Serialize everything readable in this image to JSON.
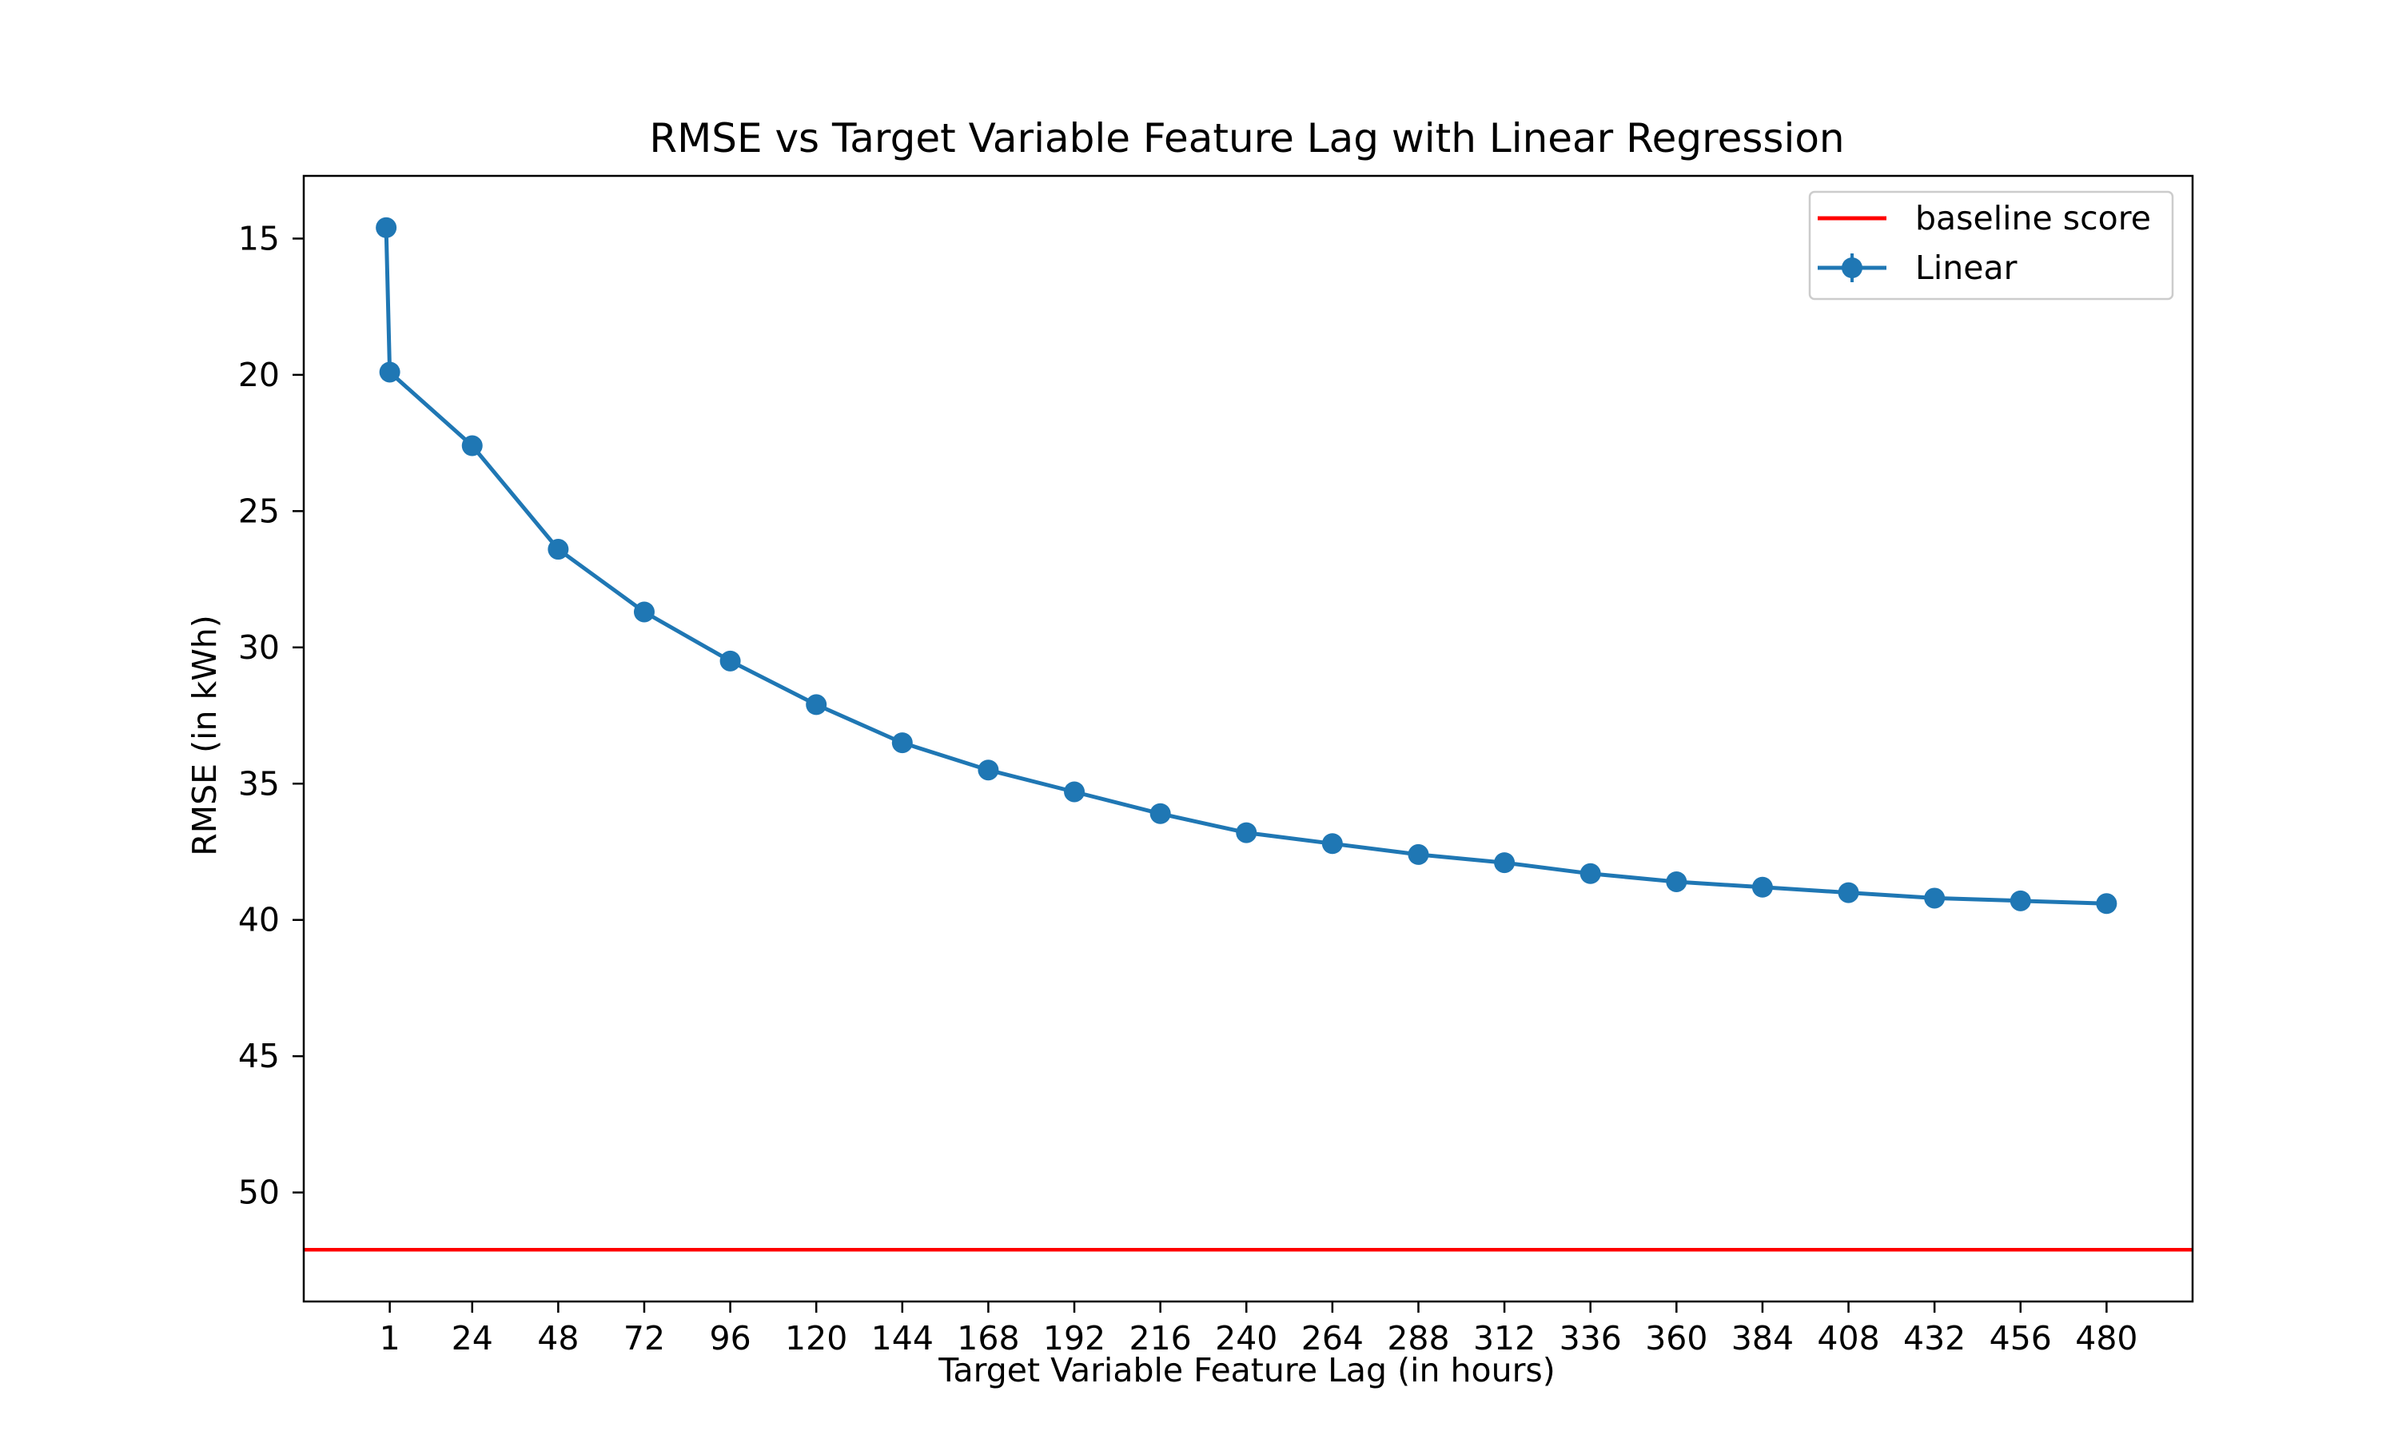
{
  "chart_data": {
    "type": "line",
    "title": "RMSE vs Target Variable Feature Lag with Linear Regression",
    "xlabel": "Target Variable Feature Lag (in hours)",
    "ylabel": "RMSE (in kWh)",
    "y_inverted": true,
    "ylim": [
      54.0,
      12.7
    ],
    "xlim": [
      -23,
      504
    ],
    "x_ticks": [
      1,
      24,
      48,
      72,
      96,
      120,
      144,
      168,
      192,
      216,
      240,
      264,
      288,
      312,
      336,
      360,
      384,
      408,
      432,
      456,
      480
    ],
    "y_ticks": [
      15,
      20,
      25,
      30,
      35,
      40,
      45,
      50
    ],
    "grid": false,
    "legend_position": "top-right",
    "series": [
      {
        "name": "Linear",
        "color": "#1f77b4",
        "marker": "circle",
        "x": [
          0,
          1,
          24,
          48,
          72,
          96,
          120,
          144,
          168,
          192,
          216,
          240,
          264,
          288,
          312,
          336,
          360,
          384,
          408,
          432,
          456,
          480
        ],
        "y": [
          14.6,
          19.9,
          22.6,
          26.4,
          28.7,
          30.5,
          32.1,
          33.5,
          34.5,
          35.3,
          36.1,
          36.8,
          37.2,
          37.6,
          37.9,
          38.3,
          38.6,
          38.8,
          39.0,
          39.2,
          39.3,
          39.4
        ]
      }
    ],
    "reference_lines": [
      {
        "name": "baseline score",
        "color": "#ff0000",
        "y": 52.1
      }
    ],
    "legend": [
      {
        "label": "baseline score",
        "kind": "line",
        "color": "#ff0000"
      },
      {
        "label": "Linear",
        "kind": "line-marker",
        "color": "#1f77b4"
      }
    ]
  }
}
